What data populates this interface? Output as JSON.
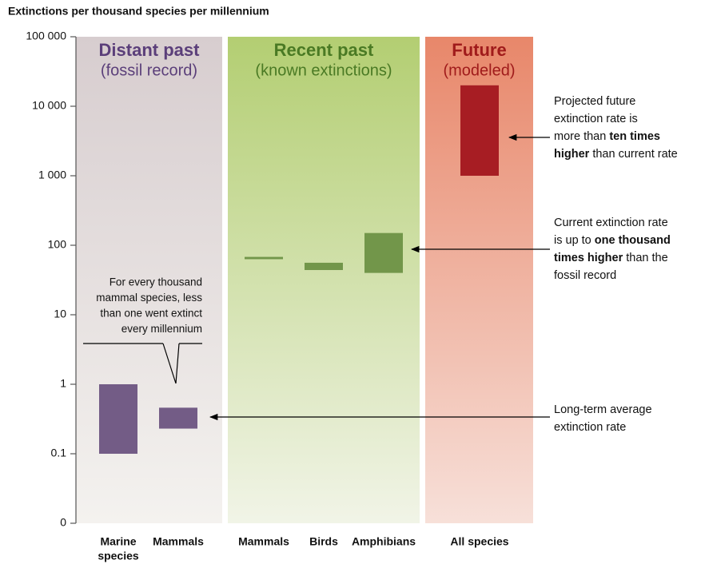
{
  "chart_data": {
    "type": "floating-bar",
    "title": "Extinctions per thousand species per millennium",
    "log_scale": true,
    "ylim": [
      0.01,
      100000
    ],
    "yticks": [
      {
        "value": 0.01,
        "label": "0"
      },
      0.1,
      1,
      10,
      100,
      {
        "value": 1000,
        "label": "1 000"
      },
      {
        "value": 10000,
        "label": "10 000"
      },
      {
        "value": 100000,
        "label": "100 000"
      }
    ],
    "panels": [
      {
        "title": "Distant past",
        "subtitle": "(fossil record)"
      },
      {
        "title": "Recent past",
        "subtitle": "(known extinctions)"
      },
      {
        "title": "Future",
        "subtitle": "(modeled)"
      }
    ],
    "categories": [
      [
        "Marine",
        "species"
      ],
      [
        "Mammals"
      ],
      [
        "Mammals"
      ],
      [
        "Birds"
      ],
      [
        "Amphibians"
      ],
      [
        "All species"
      ]
    ],
    "low": [
      0.1,
      0.23,
      63,
      44,
      40,
      1000
    ],
    "high": [
      1,
      0.46,
      68,
      56,
      150,
      20000
    ],
    "colors": [
      "#735c86",
      "#735c86",
      "#72964a",
      "#72964a",
      "#72964a",
      "#a71d23"
    ],
    "callout": [
      "For every thousand",
      "mammal species, less",
      "than one went extinct",
      "every millennium"
    ],
    "annotations": [
      [
        [
          {
            "text": "Projected future"
          }
        ],
        [
          {
            "text": "extinction rate is"
          }
        ],
        [
          {
            "text": "more than "
          },
          {
            "text": "ten times",
            "bold": true
          }
        ],
        [
          {
            "text": "higher",
            "bold": true
          },
          {
            "text": " than current rate"
          }
        ]
      ],
      [
        [
          {
            "text": "Current extinction rate"
          }
        ],
        [
          {
            "text": "is up to "
          },
          {
            "text": "one thousand",
            "bold": true
          }
        ],
        [
          {
            "text": "times higher",
            "bold": true
          },
          {
            "text": " than the"
          }
        ],
        [
          {
            "text": "fossil record"
          }
        ]
      ],
      [
        [
          {
            "text": "Long-term average"
          }
        ],
        [
          {
            "text": "extinction rate"
          }
        ]
      ]
    ]
  }
}
